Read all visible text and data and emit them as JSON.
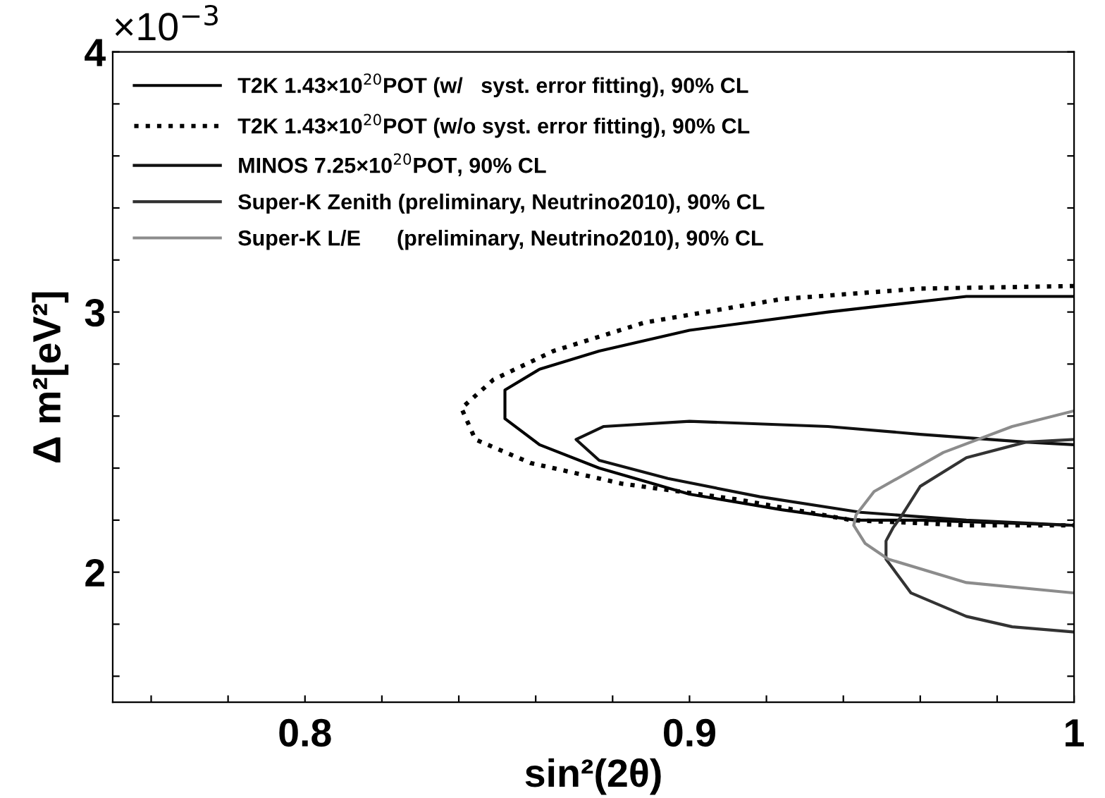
{
  "chart_data": {
    "type": "line",
    "xlabel": "sin²(2θ)",
    "ylabel": "Δ m²[eV²]",
    "annotations": [
      "×10$^{−3}$"
    ],
    "xlim": [
      0.75,
      1.0
    ],
    "ylim": [
      1.5,
      4.0
    ],
    "xticks": [
      {
        "value": 0.76,
        "label": null
      },
      {
        "value": 0.78,
        "label": null
      },
      0.8,
      {
        "value": 0.82,
        "label": null
      },
      {
        "value": 0.84,
        "label": null
      },
      {
        "value": 0.86,
        "label": null
      },
      {
        "value": 0.88,
        "label": null
      },
      0.9,
      {
        "value": 0.92,
        "label": null
      },
      {
        "value": 0.94,
        "label": null
      },
      {
        "value": 0.96,
        "label": null
      },
      {
        "value": 0.98,
        "label": null
      },
      1
    ],
    "yticks": [
      {
        "value": 1.6,
        "label": null
      },
      {
        "value": 1.8,
        "label": null
      },
      2,
      {
        "value": 2.2,
        "label": null
      },
      {
        "value": 2.4,
        "label": null
      },
      {
        "value": 2.6,
        "label": null
      },
      {
        "value": 2.8,
        "label": null
      },
      3,
      {
        "value": 3.2,
        "label": null
      },
      {
        "value": 3.4,
        "label": null
      },
      {
        "value": 3.6,
        "label": null
      },
      {
        "value": 3.8,
        "label": null
      },
      4
    ],
    "legend": "top left",
    "grid": false,
    "series": [
      {
        "name": "T2K 1.43×10$^{20}$POT (w/   syst. error fitting), 90% CL",
        "color": "#000000",
        "line_style": "solid",
        "x": [
          1.0,
          0.972,
          0.936,
          0.9,
          0.8765,
          0.861,
          0.852,
          0.852,
          0.861,
          0.8765,
          0.9,
          0.924,
          0.9433,
          0.96,
          1.0
        ],
        "values": [
          3.06,
          3.06,
          3.0,
          2.93,
          2.85,
          2.78,
          2.7,
          2.59,
          2.49,
          2.4,
          2.3,
          2.24,
          2.2,
          2.2,
          2.18
        ]
      },
      {
        "name": "T2K 1.43×10$^{20}$POT (w/o syst. error fitting), 90% CL",
        "color": "#000000",
        "line_style": "dotted",
        "x": [
          1.0,
          0.96,
          0.924,
          0.8884,
          0.8646,
          0.849,
          0.8407,
          0.8443,
          0.8586,
          0.8825,
          0.9123,
          0.9421,
          0.972,
          1.0
        ],
        "values": [
          3.1,
          3.09,
          3.05,
          2.96,
          2.85,
          2.74,
          2.63,
          2.51,
          2.42,
          2.34,
          2.28,
          2.2,
          2.18,
          2.18
        ]
      },
      {
        "name": "MINOS 7.25×10$^{20}$POT, 90% CL",
        "color": "#111111",
        "line_style": "solid",
        "x": [
          1.0,
          0.9875,
          0.96,
          0.936,
          0.9,
          0.8777,
          0.8705,
          0.8765,
          0.8944,
          0.9183,
          0.9445,
          0.972,
          1.0
        ],
        "values": [
          2.49,
          2.5,
          2.53,
          2.56,
          2.58,
          2.56,
          2.51,
          2.43,
          2.36,
          2.29,
          2.23,
          2.2,
          2.18
        ]
      },
      {
        "name": "Super-K Zenith (preliminary, Neutrino2010), 90% CL",
        "color": "#333333",
        "line_style": "solid",
        "x": [
          1.0,
          0.9875,
          0.972,
          0.96,
          0.9553,
          0.9529,
          0.9511,
          0.9511,
          0.9576,
          0.972,
          0.9839,
          1.0
        ],
        "values": [
          2.51,
          2.5,
          2.44,
          2.33,
          2.22,
          2.17,
          2.12,
          2.05,
          1.92,
          1.83,
          1.79,
          1.77
        ]
      },
      {
        "name": "Super-K L/E      (preliminary, Neutrino2010), 90% CL",
        "color": "#8c8c8c",
        "line_style": "solid",
        "x": [
          1.0,
          0.9839,
          0.966,
          0.948,
          0.9433,
          0.9427,
          0.9457,
          0.9517,
          0.972,
          1.0
        ],
        "values": [
          2.62,
          2.56,
          2.46,
          2.31,
          2.22,
          2.18,
          2.11,
          2.05,
          1.96,
          1.92
        ]
      }
    ]
  }
}
